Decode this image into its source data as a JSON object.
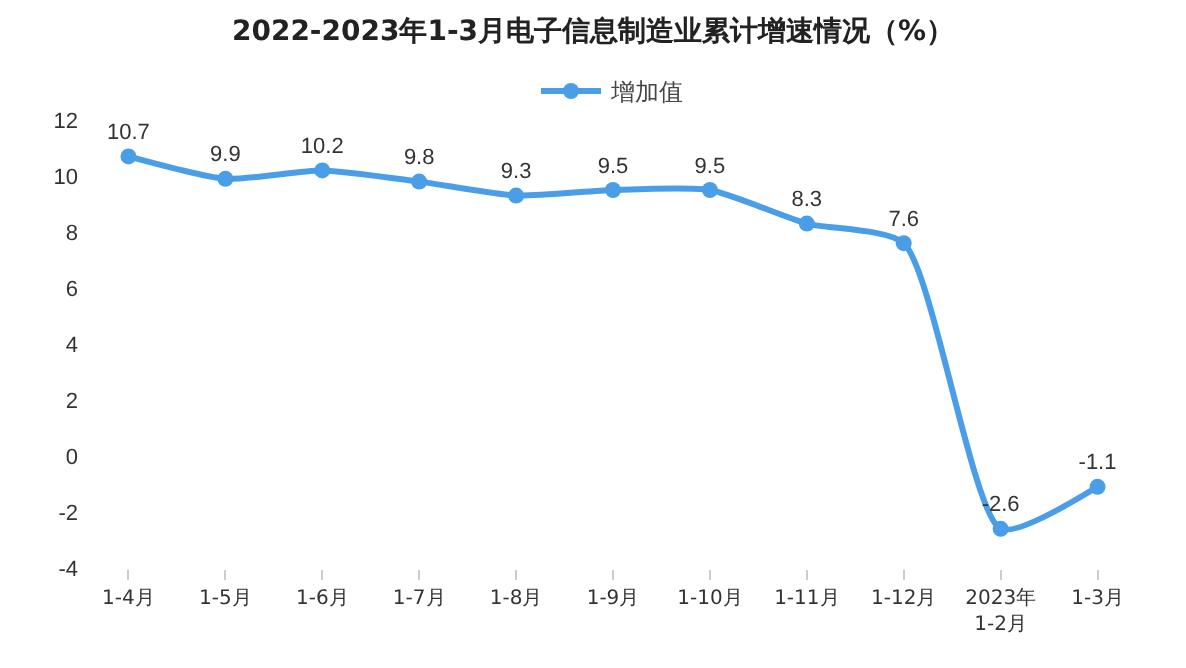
{
  "chart_data": {
    "type": "line",
    "title": "2022-2023年1-3月电子信息制造业累计增速情况（%）",
    "categories": [
      "1-4月",
      "1-5月",
      "1-6月",
      "1-7月",
      "1-8月",
      "1-9月",
      "1-10月",
      "1-11月",
      "1-12月",
      "2023年\n1-2月",
      "1-3月"
    ],
    "series": [
      {
        "name": "增加值",
        "color": "#4a9ee8",
        "values": [
          10.7,
          9.9,
          10.2,
          9.8,
          9.3,
          9.5,
          9.5,
          8.3,
          7.6,
          -2.6,
          -1.1
        ]
      }
    ],
    "ylim": [
      -4,
      12
    ],
    "yticks": [
      -4,
      -2,
      0,
      2,
      4,
      6,
      8,
      10,
      12
    ],
    "grid": false,
    "legend": "top",
    "marker": "circle",
    "line_style": "solid",
    "data_labels": true
  }
}
